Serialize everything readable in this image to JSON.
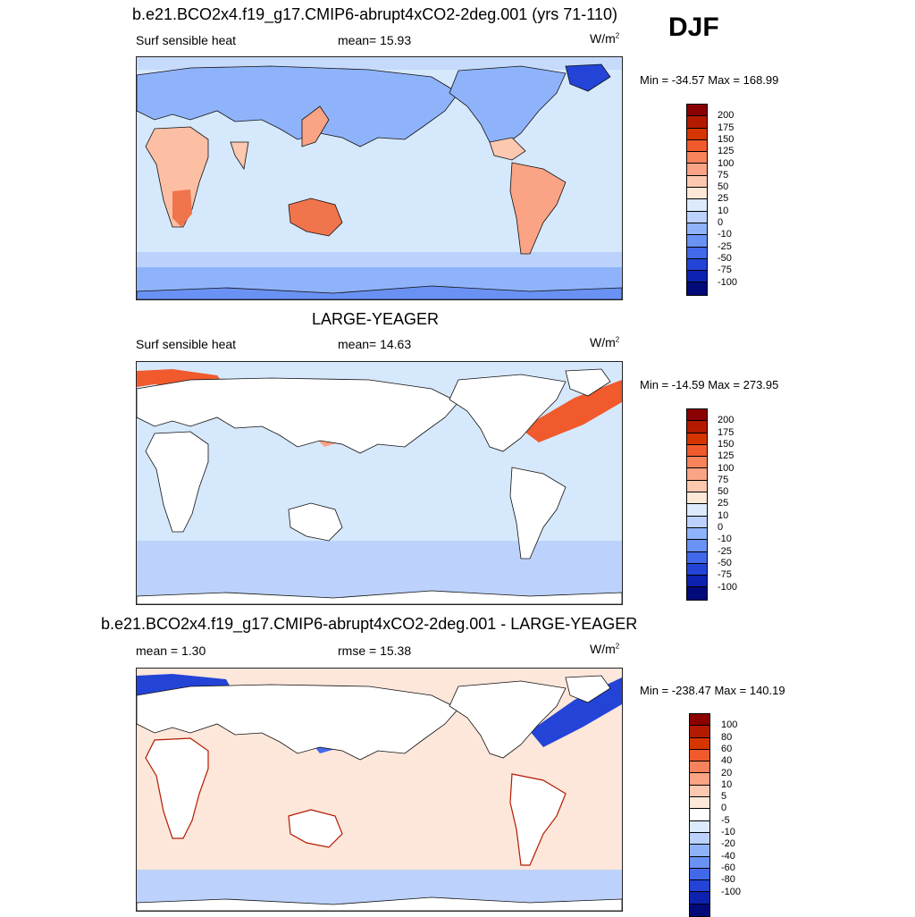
{
  "season": "DJF",
  "panels": [
    {
      "title": "b.e21.BCO2x4.f19_g17.CMIP6-abrupt4xCO2-2deg.001 (yrs 71-110)",
      "left_label": "Surf sensible heat",
      "center_label": "mean=  15.93",
      "units_base": "W/m",
      "units_exp": "2",
      "minmax": "Min = -34.57 Max = 168.99",
      "ocean_color": "#d6e8fc",
      "land_color": "#fcbfa3",
      "colorbar": {
        "colors": [
          "#8b0000",
          "#b31a00",
          "#d63500",
          "#f05a2c",
          "#f7835c",
          "#fba385",
          "#fcc8b0",
          "#fde8d8",
          "#dceafe",
          "#bcd2fd",
          "#8fb3fb",
          "#6a92f4",
          "#4369eb",
          "#2344d6",
          "#0d22b0",
          "#020a7a"
        ],
        "labels": [
          "200",
          "175",
          "150",
          "125",
          "100",
          "75",
          "50",
          "25",
          "10",
          "0",
          "-10",
          "-25",
          "-50",
          "-75",
          "-100"
        ]
      }
    },
    {
      "title": "LARGE-YEAGER",
      "left_label": "Surf sensible heat",
      "center_label": "mean=  14.63",
      "units_base": "W/m",
      "units_exp": "2",
      "minmax": "Min = -14.59 Max = 273.95",
      "ocean_color": "#d6e8fc",
      "land_color": "#ffffff",
      "colorbar": {
        "colors": [
          "#8b0000",
          "#b31a00",
          "#d63500",
          "#f05a2c",
          "#f7835c",
          "#fba385",
          "#fcc8b0",
          "#fde8d8",
          "#dceafe",
          "#bcd2fd",
          "#8fb3fb",
          "#6a92f4",
          "#4369eb",
          "#2344d6",
          "#0d22b0",
          "#020a7a"
        ],
        "labels": [
          "200",
          "175",
          "150",
          "125",
          "100",
          "75",
          "50",
          "25",
          "10",
          "0",
          "-10",
          "-25",
          "-50",
          "-75",
          "-100"
        ]
      }
    },
    {
      "title": "b.e21.BCO2x4.f19_g17.CMIP6-abrupt4xCO2-2deg.001 - LARGE-YEAGER",
      "left_label": "mean =   1.30",
      "center_label": "rmse =  15.38",
      "units_base": "W/m",
      "units_exp": "2",
      "minmax": "Min = -238.47 Max = 140.19",
      "ocean_color": "#fde6da",
      "land_color": "#ffffff",
      "colorbar": {
        "colors": [
          "#8b0000",
          "#b31a00",
          "#d63500",
          "#f05a2c",
          "#f7835c",
          "#fba385",
          "#fcc8b0",
          "#fde8d8",
          "#ffffff",
          "#dceafe",
          "#bcd2fd",
          "#8fb3fb",
          "#6a92f4",
          "#4369eb",
          "#2344d6",
          "#0d22b0",
          "#020a7a"
        ],
        "labels": [
          "100",
          "80",
          "60",
          "40",
          "20",
          "10",
          "5",
          "0",
          "-5",
          "-10",
          "-20",
          "-40",
          "-60",
          "-80",
          "-100"
        ]
      }
    }
  ]
}
